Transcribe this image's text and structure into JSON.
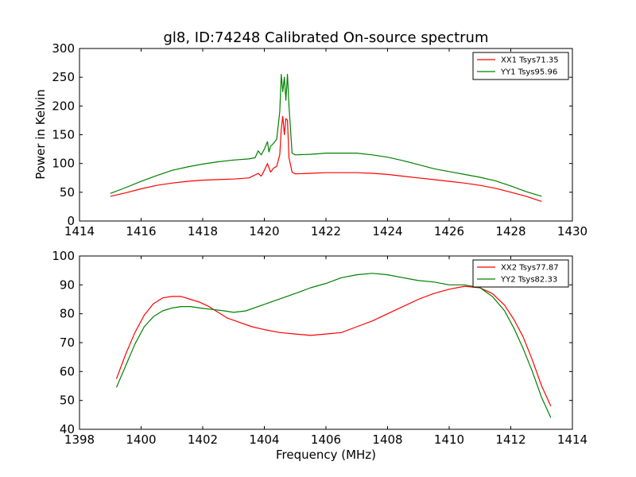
{
  "colors": {
    "xx": "#ff0000",
    "yy": "#008000"
  },
  "chart_data": [
    {
      "type": "line",
      "title": "gl8, ID:74248 Calibrated On-source spectrum",
      "xlabel": "",
      "ylabel": "Power in Kelvin",
      "xlim": [
        1414,
        1430
      ],
      "ylim": [
        0,
        300
      ],
      "xticks": [
        "1414",
        "1416",
        "1418",
        "1420",
        "1422",
        "1424",
        "1426",
        "1428",
        "1430"
      ],
      "yticks": [
        "0",
        "50",
        "100",
        "150",
        "200",
        "250",
        "300"
      ],
      "grid": false,
      "legend_position": "top-right",
      "series": [
        {
          "name": "XX1 Tsys71.35",
          "color": "#ff0000",
          "points": [
            [
              1415.0,
              43
            ],
            [
              1415.5,
              49
            ],
            [
              1416.0,
              56
            ],
            [
              1416.5,
              62
            ],
            [
              1417.0,
              66
            ],
            [
              1417.5,
              69
            ],
            [
              1418.0,
              71
            ],
            [
              1418.5,
              72
            ],
            [
              1419.0,
              73
            ],
            [
              1419.5,
              75
            ],
            [
              1419.7,
              80
            ],
            [
              1419.8,
              83
            ],
            [
              1419.9,
              78
            ],
            [
              1420.0,
              88
            ],
            [
              1420.1,
              100
            ],
            [
              1420.2,
              85
            ],
            [
              1420.3,
              92
            ],
            [
              1420.4,
              95
            ],
            [
              1420.5,
              115
            ],
            [
              1420.55,
              160
            ],
            [
              1420.6,
              182
            ],
            [
              1420.65,
              150
            ],
            [
              1420.7,
              178
            ],
            [
              1420.75,
              175
            ],
            [
              1420.8,
              110
            ],
            [
              1420.9,
              85
            ],
            [
              1421.0,
              82
            ],
            [
              1421.5,
              83
            ],
            [
              1422.0,
              84
            ],
            [
              1422.5,
              84
            ],
            [
              1423.0,
              84
            ],
            [
              1423.5,
              83
            ],
            [
              1424.0,
              81
            ],
            [
              1424.5,
              78
            ],
            [
              1425.0,
              75
            ],
            [
              1425.5,
              72
            ],
            [
              1426.0,
              69
            ],
            [
              1426.5,
              66
            ],
            [
              1427.0,
              62
            ],
            [
              1427.5,
              57
            ],
            [
              1428.0,
              50
            ],
            [
              1428.5,
              43
            ],
            [
              1429.0,
              34
            ]
          ]
        },
        {
          "name": "YY1 Tsys95.96",
          "color": "#008000",
          "points": [
            [
              1415.0,
              48
            ],
            [
              1415.5,
              58
            ],
            [
              1416.0,
              69
            ],
            [
              1416.5,
              79
            ],
            [
              1417.0,
              88
            ],
            [
              1417.5,
              94
            ],
            [
              1418.0,
              99
            ],
            [
              1418.5,
              103
            ],
            [
              1419.0,
              106
            ],
            [
              1419.5,
              108
            ],
            [
              1419.7,
              110
            ],
            [
              1419.8,
              122
            ],
            [
              1419.9,
              115
            ],
            [
              1420.0,
              125
            ],
            [
              1420.1,
              138
            ],
            [
              1420.15,
              120
            ],
            [
              1420.2,
              130
            ],
            [
              1420.3,
              135
            ],
            [
              1420.4,
              142
            ],
            [
              1420.5,
              190
            ],
            [
              1420.55,
              255
            ],
            [
              1420.6,
              225
            ],
            [
              1420.65,
              250
            ],
            [
              1420.7,
              210
            ],
            [
              1420.75,
              255
            ],
            [
              1420.8,
              200
            ],
            [
              1420.9,
              118
            ],
            [
              1421.0,
              115
            ],
            [
              1421.5,
              116
            ],
            [
              1422.0,
              118
            ],
            [
              1422.5,
              118
            ],
            [
              1423.0,
              118
            ],
            [
              1423.5,
              115
            ],
            [
              1424.0,
              111
            ],
            [
              1424.5,
              105
            ],
            [
              1425.0,
              98
            ],
            [
              1425.5,
              91
            ],
            [
              1426.0,
              86
            ],
            [
              1426.5,
              81
            ],
            [
              1427.0,
              76
            ],
            [
              1427.5,
              70
            ],
            [
              1428.0,
              61
            ],
            [
              1428.5,
              51
            ],
            [
              1429.0,
              43
            ]
          ]
        }
      ]
    },
    {
      "type": "line",
      "title": "",
      "xlabel": "Frequency (MHz)",
      "ylabel": "",
      "xlim": [
        1398,
        1414
      ],
      "ylim": [
        40,
        100
      ],
      "xticks": [
        "1398",
        "1400",
        "1402",
        "1404",
        "1406",
        "1408",
        "1410",
        "1412",
        "1414"
      ],
      "yticks": [
        "40",
        "50",
        "60",
        "70",
        "80",
        "90",
        "100"
      ],
      "grid": false,
      "legend_position": "top-right",
      "series": [
        {
          "name": "XX2 Tsys77.87",
          "color": "#ff0000",
          "points": [
            [
              1399.2,
              57.5
            ],
            [
              1399.5,
              66
            ],
            [
              1399.8,
              73.5
            ],
            [
              1400.1,
              79.5
            ],
            [
              1400.4,
              83.5
            ],
            [
              1400.7,
              85.5
            ],
            [
              1401.0,
              86
            ],
            [
              1401.3,
              86
            ],
            [
              1401.6,
              85
            ],
            [
              1401.9,
              84
            ],
            [
              1402.2,
              82.5
            ],
            [
              1402.5,
              80.5
            ],
            [
              1402.8,
              78.5
            ],
            [
              1403.2,
              77
            ],
            [
              1403.6,
              75.5
            ],
            [
              1404.0,
              74.5
            ],
            [
              1404.5,
              73.5
            ],
            [
              1405.0,
              73
            ],
            [
              1405.5,
              72.5
            ],
            [
              1406.0,
              73
            ],
            [
              1406.5,
              73.5
            ],
            [
              1407.0,
              75.5
            ],
            [
              1407.5,
              77.5
            ],
            [
              1408.0,
              80
            ],
            [
              1408.5,
              82.5
            ],
            [
              1409.0,
              85
            ],
            [
              1409.5,
              87
            ],
            [
              1410.0,
              88.5
            ],
            [
              1410.5,
              89.5
            ],
            [
              1411.0,
              89
            ],
            [
              1411.4,
              87
            ],
            [
              1411.8,
              83
            ],
            [
              1412.1,
              78
            ],
            [
              1412.4,
              72
            ],
            [
              1412.7,
              64
            ],
            [
              1413.0,
              55
            ],
            [
              1413.3,
              48
            ]
          ]
        },
        {
          "name": "YY2 Tsys82.33",
          "color": "#008000",
          "points": [
            [
              1399.2,
              54.5
            ],
            [
              1399.5,
              62
            ],
            [
              1399.8,
              69.5
            ],
            [
              1400.1,
              75.5
            ],
            [
              1400.4,
              79
            ],
            [
              1400.7,
              81
            ],
            [
              1401.0,
              82
            ],
            [
              1401.3,
              82.5
            ],
            [
              1401.6,
              82.5
            ],
            [
              1401.9,
              82
            ],
            [
              1402.3,
              81.5
            ],
            [
              1402.7,
              81
            ],
            [
              1403.0,
              80.5
            ],
            [
              1403.4,
              81
            ],
            [
              1403.8,
              82.5
            ],
            [
              1404.2,
              84
            ],
            [
              1404.6,
              85.5
            ],
            [
              1405.0,
              87
            ],
            [
              1405.5,
              89
            ],
            [
              1406.0,
              90.5
            ],
            [
              1406.5,
              92.5
            ],
            [
              1407.0,
              93.5
            ],
            [
              1407.5,
              94
            ],
            [
              1408.0,
              93.5
            ],
            [
              1408.5,
              92.5
            ],
            [
              1409.0,
              91.5
            ],
            [
              1409.5,
              91
            ],
            [
              1410.0,
              90
            ],
            [
              1410.5,
              90
            ],
            [
              1411.0,
              89
            ],
            [
              1411.4,
              86
            ],
            [
              1411.8,
              81
            ],
            [
              1412.1,
              75
            ],
            [
              1412.4,
              68
            ],
            [
              1412.7,
              60
            ],
            [
              1413.0,
              51
            ],
            [
              1413.3,
              44
            ]
          ]
        }
      ]
    }
  ]
}
